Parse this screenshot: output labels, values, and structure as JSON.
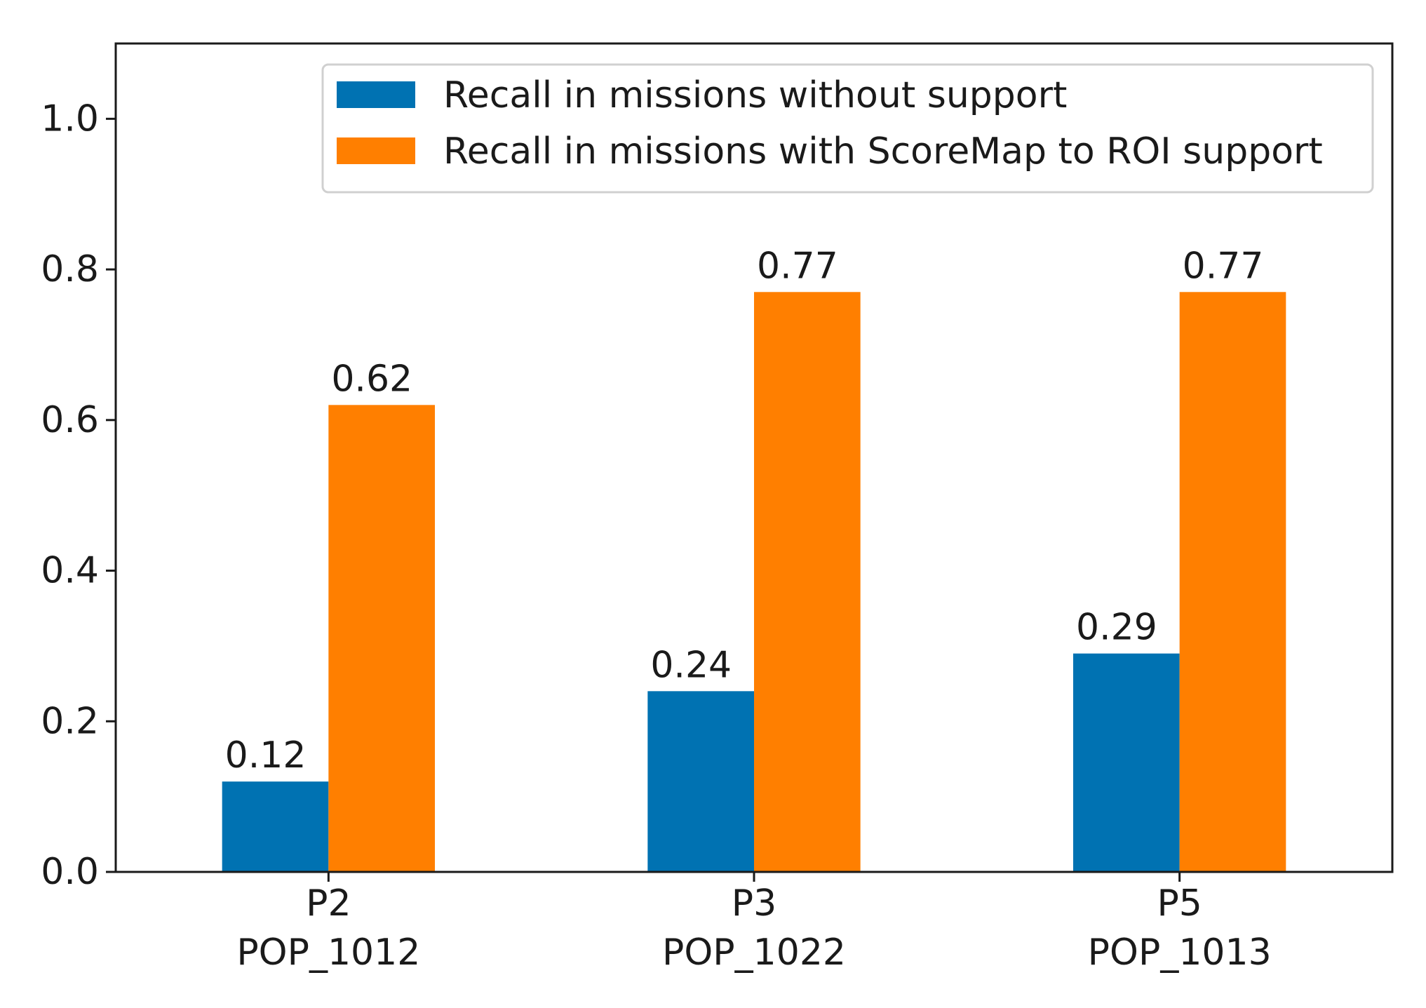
{
  "chart_data": {
    "type": "bar",
    "title": "",
    "xlabel": "",
    "ylabel": "",
    "ylim": [
      0,
      1.1
    ],
    "yticks": [
      0.0,
      0.2,
      0.4,
      0.6,
      0.8,
      1.0
    ],
    "ytick_labels": [
      "0.0",
      "0.2",
      "0.4",
      "0.6",
      "0.8",
      "1.0"
    ],
    "grid": false,
    "legend_position": "top-right",
    "categories": [
      {
        "line1": "P2",
        "line2": "POP_1012"
      },
      {
        "line1": "P3",
        "line2": "POP_1022"
      },
      {
        "line1": "P5",
        "line2": "POP_1013"
      }
    ],
    "series": [
      {
        "name": "Recall in missions without support",
        "color": "#0072b2",
        "values": [
          0.12,
          0.24,
          0.29
        ],
        "value_labels": [
          "0.12",
          "0.24",
          "0.29"
        ]
      },
      {
        "name": "Recall in missions with ScoreMap to ROI support",
        "color": "#ff7f00",
        "values": [
          0.62,
          0.77,
          0.77
        ],
        "value_labels": [
          "0.62",
          "0.77",
          "0.77"
        ]
      }
    ]
  }
}
